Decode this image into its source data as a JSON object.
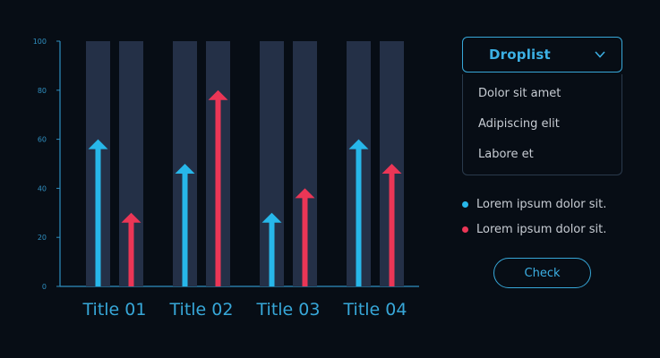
{
  "colors": {
    "background": "#070d15",
    "bar_track": "#243047",
    "series_blue": "#27b7ea",
    "series_red": "#eb3656",
    "accent": "#37a7d8",
    "axis": "#2f8fc0"
  },
  "chart_data": {
    "type": "bar",
    "categories": [
      "Title 01",
      "Title 02",
      "Title 03",
      "Title 04"
    ],
    "series": [
      {
        "values": [
          60,
          50,
          30,
          60
        ],
        "color": "#27b7ea"
      },
      {
        "values": [
          30,
          80,
          40,
          50
        ],
        "color": "#eb3656"
      }
    ],
    "ylim": [
      0,
      100
    ],
    "yticks": [
      "0",
      "20",
      "40",
      "60",
      "80",
      "100"
    ],
    "grid": false,
    "marker": "arrow",
    "track_max": 100
  },
  "dropdown": {
    "label": "Droplist",
    "icon": "chevron-down-icon",
    "items": [
      "Dolor sit amet",
      "Adipiscing elit",
      "Labore et"
    ]
  },
  "legend": [
    {
      "text": "Lorem ipsum dolor sit.",
      "color": "#27b7ea"
    },
    {
      "text": "Lorem ipsum dolor sit.",
      "color": "#eb3656"
    }
  ],
  "check_button": {
    "label": "Check"
  }
}
